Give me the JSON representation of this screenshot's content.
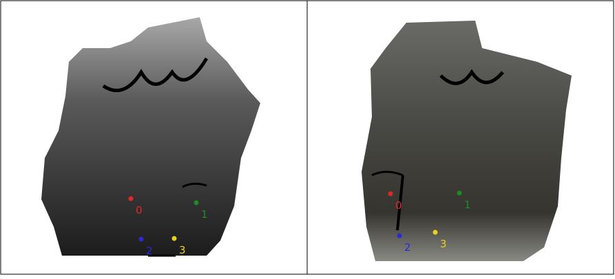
{
  "panels": [
    {
      "points": [
        {
          "label": "0",
          "color": "#e02828"
        },
        {
          "label": "1",
          "color": "#1e8a28"
        },
        {
          "label": "2",
          "color": "#2a2ad8"
        },
        {
          "label": "3",
          "color": "#e8d020"
        }
      ]
    },
    {
      "points": [
        {
          "label": "0",
          "color": "#e02828"
        },
        {
          "label": "1",
          "color": "#1e8a28"
        },
        {
          "label": "2",
          "color": "#2a2ad8"
        },
        {
          "label": "3",
          "color": "#e8d020"
        }
      ]
    }
  ]
}
